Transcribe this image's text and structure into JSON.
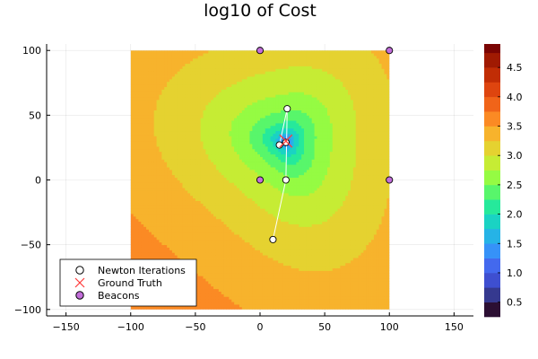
{
  "chart_data": {
    "type": "contour",
    "title": "log10 of Cost",
    "xlabel": "",
    "ylabel": "",
    "xlim": [
      -165,
      165
    ],
    "ylim": [
      -105,
      105
    ],
    "x_ticks": [
      -150,
      -100,
      -50,
      0,
      50,
      100,
      150
    ],
    "y_ticks": [
      -100,
      -50,
      0,
      50,
      100
    ],
    "grid": true,
    "domain": {
      "x": [
        -100,
        100
      ],
      "y": [
        -100,
        100
      ]
    },
    "colorbar": {
      "ticks": [
        0.5,
        1.0,
        1.5,
        2.0,
        2.5,
        3.0,
        3.5,
        4.0,
        4.5
      ],
      "tick_labels": [
        "0.5",
        "1.0",
        "1.5",
        "2.0",
        "2.5",
        "3.0",
        "3.5",
        "4.0",
        "4.5"
      ],
      "range": [
        0.25,
        4.9
      ],
      "levels": [
        {
          "from": 0.25,
          "to": 0.5,
          "color": "#2c0f33"
        },
        {
          "from": 0.5,
          "to": 0.75,
          "color": "#35398f"
        },
        {
          "from": 0.75,
          "to": 1.0,
          "color": "#3e4fd0"
        },
        {
          "from": 1.0,
          "to": 1.25,
          "color": "#4369ee"
        },
        {
          "from": 1.25,
          "to": 1.5,
          "color": "#3692f8"
        },
        {
          "from": 1.5,
          "to": 1.75,
          "color": "#26b3e6"
        },
        {
          "from": 1.75,
          "to": 2.0,
          "color": "#1ad3c3"
        },
        {
          "from": 2.0,
          "to": 2.25,
          "color": "#26e99b"
        },
        {
          "from": 2.25,
          "to": 2.5,
          "color": "#58f66b"
        },
        {
          "from": 2.5,
          "to": 2.75,
          "color": "#95fb43"
        },
        {
          "from": 2.75,
          "to": 3.0,
          "color": "#c6ec34"
        },
        {
          "from": 3.0,
          "to": 3.25,
          "color": "#e5d230"
        },
        {
          "from": 3.25,
          "to": 3.5,
          "color": "#f7b32c"
        },
        {
          "from": 3.5,
          "to": 3.75,
          "color": "#fb8a24"
        },
        {
          "from": 3.75,
          "to": 4.0,
          "color": "#f06419"
        },
        {
          "from": 4.0,
          "to": 4.25,
          "color": "#de450f"
        },
        {
          "from": 4.25,
          "to": 4.5,
          "color": "#c12d05"
        },
        {
          "from": 4.5,
          "to": 4.75,
          "color": "#a01a02"
        },
        {
          "from": 4.75,
          "to": 4.9,
          "color": "#7a0403"
        }
      ]
    },
    "contour_centre": [
      20,
      30
    ],
    "series": [
      {
        "name": "Newton Iterations",
        "type": "line+scatter",
        "marker": "circle",
        "color": "#ffffff",
        "points": [
          [
            10,
            -46
          ],
          [
            20,
            0
          ],
          [
            21,
            55
          ],
          [
            15,
            27
          ],
          [
            20,
            29
          ],
          [
            20,
            29
          ]
        ]
      },
      {
        "name": "Ground Truth",
        "type": "scatter",
        "marker": "x",
        "color": "#ff3b3b",
        "points": [
          [
            20,
            30
          ]
        ]
      },
      {
        "name": "Beacons",
        "type": "scatter",
        "marker": "circle",
        "color": "#c26ed9",
        "points": [
          [
            0,
            100
          ],
          [
            100,
            100
          ],
          [
            0,
            0
          ],
          [
            100,
            0
          ]
        ]
      }
    ],
    "legend_position": "bottom-left"
  }
}
